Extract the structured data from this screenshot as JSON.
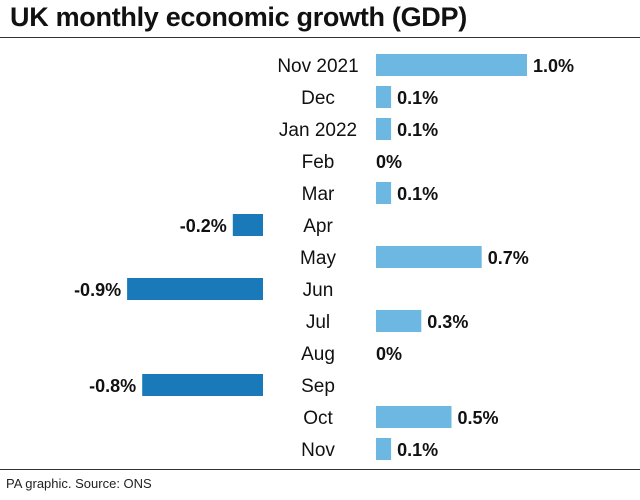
{
  "title": "UK monthly economic growth (GDP)",
  "source": "PA graphic. Source: ONS",
  "colors": {
    "positive": "#6cb8e2",
    "negative": "#1a7ab9"
  },
  "chart_data": {
    "type": "bar",
    "orientation": "horizontal",
    "title": "UK monthly economic growth (GDP)",
    "categories": [
      "Nov 2021",
      "Dec",
      "Jan 2022",
      "Feb",
      "Mar",
      "Apr",
      "May",
      "Jun",
      "Jul",
      "Aug",
      "Sep",
      "Oct",
      "Nov"
    ],
    "values": [
      1.0,
      0.1,
      0.1,
      0,
      0.1,
      -0.2,
      0.7,
      -0.9,
      0.3,
      0,
      -0.8,
      0.5,
      0.1
    ],
    "value_labels": [
      "1.0%",
      "0.1%",
      "0.1%",
      "0%",
      "0.1%",
      "-0.2%",
      "0.7%",
      "-0.9%",
      "0.3%",
      "0%",
      "-0.8%",
      "0.5%",
      "0.1%"
    ],
    "unit": "%",
    "grid": false,
    "legend": "none"
  }
}
